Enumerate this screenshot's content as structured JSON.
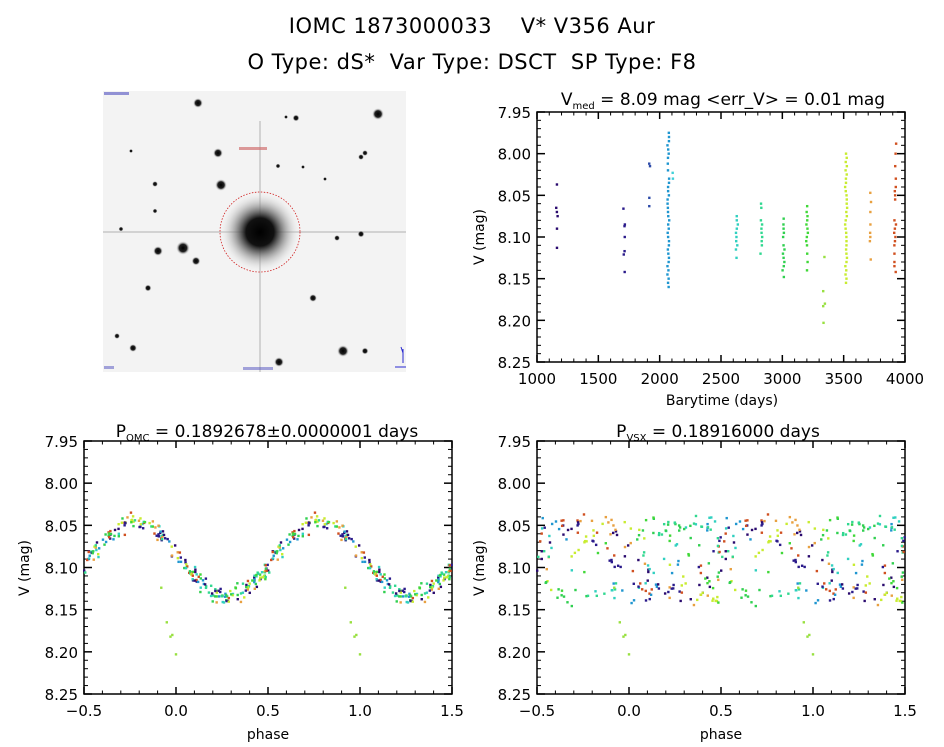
{
  "header": {
    "title_line1": "IOMC 1873000033    V* V356 Aur",
    "title_line2": "O Type: dS*  Var Type: DSCT  SP Type: F8"
  },
  "image_panel": {
    "description": "sky-image-finding-chart",
    "target_marker": "red-dashed-circle",
    "target_label_color": "#d02020",
    "label_color": "#2a2ad0"
  },
  "chart_data": [
    {
      "id": "lightcurve",
      "type": "scatter",
      "title_main": "V",
      "title_sub": "med",
      "title_rest": " = 8.09 mag <err_V> = 0.01 mag",
      "xlabel": "Barytime (days)",
      "ylabel": "V (mag)",
      "xlim": [
        1000,
        4000
      ],
      "ylim": [
        8.25,
        7.95
      ],
      "xticks": [
        "1000",
        "1500",
        "2000",
        "2500",
        "3000",
        "3500",
        "4000"
      ],
      "yticks": [
        "7.95",
        "8.00",
        "8.05",
        "8.10",
        "8.15",
        "8.20",
        "8.25"
      ],
      "series": [
        {
          "name": "season-1",
          "color": "#2a0a6e",
          "x": 1160,
          "values": [
            8.037,
            8.065,
            8.07,
            8.075,
            8.09,
            8.113
          ]
        },
        {
          "name": "season-2",
          "color": "#2a1a8a",
          "x": 1710,
          "values": [
            8.066,
            8.085,
            8.087,
            8.1,
            8.117,
            8.121,
            8.142
          ]
        },
        {
          "name": "season-3",
          "color": "#2c4aa8",
          "x": 1920,
          "values": [
            8.012,
            8.015,
            8.053,
            8.063
          ]
        },
        {
          "name": "season-4",
          "color": "#1f96d0",
          "x": 2070,
          "values": [
            7.975,
            7.98,
            7.985,
            7.99,
            7.995,
            8.0,
            8.005,
            8.012,
            8.02,
            8.03,
            8.035,
            8.04,
            8.045,
            8.05,
            8.055,
            8.06,
            8.065,
            8.07,
            8.075,
            8.08,
            8.085,
            8.09,
            8.095,
            8.1,
            8.105,
            8.11,
            8.115,
            8.12,
            8.125,
            8.13,
            8.135,
            8.14,
            8.145,
            8.15,
            8.155,
            8.16
          ]
        },
        {
          "name": "season-5",
          "color": "#3fd0d8",
          "x": 2110,
          "values": [
            8.023,
            8.03
          ]
        },
        {
          "name": "season-6",
          "color": "#30d0c0",
          "x": 2630,
          "values": [
            8.075,
            8.08,
            8.085,
            8.09,
            8.095,
            8.1,
            8.105,
            8.11,
            8.115,
            8.125
          ]
        },
        {
          "name": "season-7",
          "color": "#30d890",
          "x": 2830,
          "values": [
            8.06,
            8.065,
            8.08,
            8.085,
            8.09,
            8.095,
            8.1,
            8.105,
            8.11,
            8.12
          ]
        },
        {
          "name": "season-8",
          "color": "#30d050",
          "x": 3010,
          "values": [
            8.078,
            8.085,
            8.09,
            8.095,
            8.1,
            8.11,
            8.115,
            8.12,
            8.125,
            8.13,
            8.135,
            8.14,
            8.148
          ]
        },
        {
          "name": "season-9",
          "color": "#40d838",
          "x": 3200,
          "values": [
            8.063,
            8.07,
            8.075,
            8.08,
            8.085,
            8.09,
            8.095,
            8.1,
            8.105,
            8.11,
            8.12,
            8.13,
            8.14
          ]
        },
        {
          "name": "season-10",
          "color": "#98e040",
          "x": 3340,
          "values": [
            8.124,
            8.165,
            8.18,
            8.183,
            8.203
          ]
        },
        {
          "name": "season-11",
          "color": "#c8ec30",
          "x": 3520,
          "values": [
            8.0,
            8.005,
            8.01,
            8.015,
            8.02,
            8.025,
            8.03,
            8.035,
            8.04,
            8.045,
            8.05,
            8.055,
            8.06,
            8.065,
            8.07,
            8.075,
            8.08,
            8.085,
            8.09,
            8.095,
            8.1,
            8.105,
            8.11,
            8.115,
            8.12,
            8.125,
            8.13,
            8.135,
            8.14,
            8.145,
            8.15,
            8.155
          ]
        },
        {
          "name": "season-12",
          "color": "#e8a040",
          "x": 3720,
          "values": [
            8.047,
            8.058,
            8.07,
            8.085,
            8.095,
            8.1,
            8.105,
            8.127
          ]
        },
        {
          "name": "season-13",
          "color": "#d05020",
          "x": 3920,
          "values": [
            7.988,
            8.0,
            8.015,
            8.03,
            8.04,
            8.045,
            8.05,
            8.055,
            8.08,
            8.085,
            8.09,
            8.095,
            8.1,
            8.105,
            8.11,
            8.12,
            8.13,
            8.135,
            8.142
          ]
        }
      ]
    },
    {
      "id": "phase-omc",
      "type": "scatter",
      "title_main": "P",
      "title_sub": "OMC",
      "title_rest": " = 0.1892678±0.0000001 days",
      "xlabel": "phase",
      "ylabel": "V (mag)",
      "xlim": [
        -0.5,
        1.5
      ],
      "ylim": [
        8.25,
        7.95
      ],
      "xticks": [
        "-0.5",
        "0.0",
        "0.5",
        "1.0",
        "1.5"
      ],
      "yticks": [
        "7.95",
        "8.00",
        "8.05",
        "8.10",
        "8.15",
        "8.20",
        "8.25"
      ],
      "model": {
        "mean": 8.09,
        "amplitude": 0.045,
        "max_phase": 0.78,
        "scatter": 0.025
      },
      "outliers": [
        [
          -0.08,
          8.124
        ],
        [
          -0.05,
          8.165
        ],
        [
          -0.03,
          8.182
        ],
        [
          -0.02,
          8.18
        ],
        [
          0.0,
          8.203
        ]
      ]
    },
    {
      "id": "phase-vsx",
      "type": "scatter",
      "title_main": "P",
      "title_sub": "VSX",
      "title_rest": " = 0.18916000 days",
      "xlabel": "phase",
      "ylabel": "V (mag)",
      "xlim": [
        -0.5,
        1.5
      ],
      "ylim": [
        8.25,
        7.95
      ],
      "xticks": [
        "-0.5",
        "0.0",
        "0.5",
        "1.0",
        "1.5"
      ],
      "yticks": [
        "7.95",
        "8.00",
        "8.05",
        "8.10",
        "8.15",
        "8.20",
        "8.25"
      ],
      "model": {
        "mean": 8.09,
        "amplitude": 0.045,
        "drift_per_season": 0.12,
        "scatter": 0.025
      },
      "outliers": [
        [
          -0.08,
          8.124
        ],
        [
          -0.05,
          8.165
        ],
        [
          -0.03,
          8.182
        ],
        [
          -0.02,
          8.18
        ],
        [
          0.0,
          8.203
        ]
      ]
    }
  ]
}
